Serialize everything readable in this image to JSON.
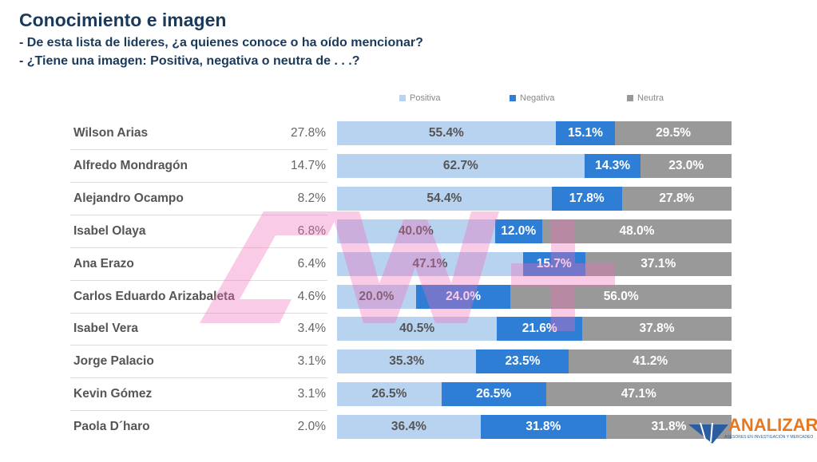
{
  "header": {
    "title": "Conocimiento e imagen",
    "q1": "- De esta lista de lideres, ¿a quienes conoce o ha oído mencionar?",
    "q2": "- ¿Tiene una imagen: Positiva, negativa o neutra de . . .?"
  },
  "logo": {
    "name": "ANALIZAR",
    "tagline": "ASESORES EN INVESTIGACIÓN Y MERCADEO"
  },
  "chart_data": {
    "type": "bar",
    "stacked": true,
    "orientation": "horizontal",
    "legend_position": "top",
    "categories": [
      "Wilson Arias",
      "Alfredo Mondragón",
      "Alejandro Ocampo",
      "Isabel Olaya",
      "Ana Erazo",
      "Carlos Eduardo Arizabaleta",
      "Isabel Vera",
      "Jorge Palacio",
      "Kevin Gómez",
      "Paola D´haro"
    ],
    "awareness": [
      "27.8%",
      "14.7%",
      "8.2%",
      "6.8%",
      "6.4%",
      "4.6%",
      "3.4%",
      "3.1%",
      "3.1%",
      "2.0%"
    ],
    "series": [
      {
        "name": "Positiva",
        "color": "#b8d3f0",
        "text": "#555555",
        "values": [
          55.4,
          62.7,
          54.4,
          40.0,
          47.1,
          20.0,
          40.5,
          35.3,
          26.5,
          36.4
        ]
      },
      {
        "name": "Negativa",
        "color": "#2e7ed6",
        "text": "#ffffff",
        "values": [
          15.1,
          14.3,
          17.8,
          12.0,
          15.7,
          24.0,
          21.6,
          23.5,
          26.5,
          31.8
        ]
      },
      {
        "name": "Neutra",
        "color": "#999999",
        "text": "#ffffff",
        "values": [
          29.5,
          23.0,
          27.8,
          48.0,
          37.1,
          56.0,
          37.8,
          41.2,
          47.1,
          31.8
        ]
      }
    ]
  }
}
